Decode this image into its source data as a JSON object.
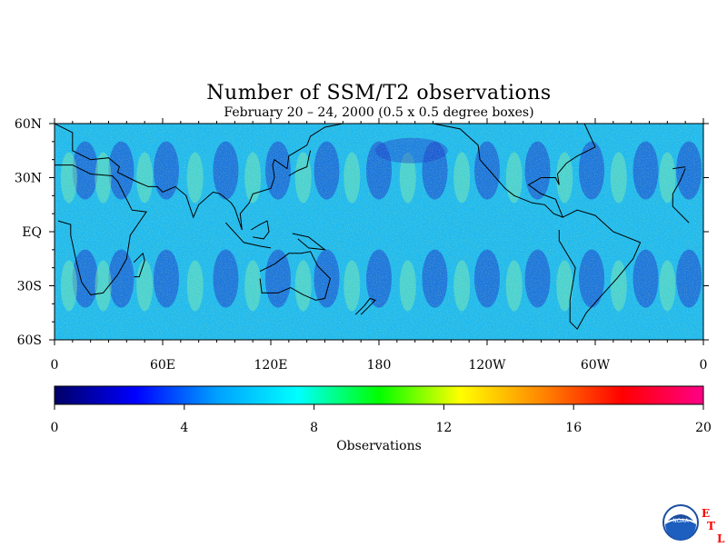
{
  "title": "Number of SSM/T2 observations",
  "subtitle": "February 20 – 24, 2000 (0.5 x 0.5 degree boxes)",
  "map": {
    "lat_labels": [
      "60N",
      "30N",
      "EQ",
      "30S",
      "60S"
    ],
    "lat_values": [
      60,
      30,
      0,
      -30,
      -60
    ],
    "lon_labels": [
      "0",
      "60E",
      "120E",
      "180",
      "120W",
      "60W",
      "0"
    ],
    "lon_values": [
      0,
      60,
      120,
      180,
      240,
      300,
      360
    ],
    "lon_range": [
      0,
      360
    ],
    "lat_range": [
      -60,
      60
    ]
  },
  "colorbar": {
    "label": "Observations",
    "ticks": [
      "0",
      "4",
      "8",
      "12",
      "16",
      "20"
    ],
    "tick_values": [
      0,
      4,
      8,
      12,
      16,
      20
    ],
    "range": [
      0,
      20
    ],
    "colors": [
      "#000066",
      "#0000ff",
      "#00a0ff",
      "#00ffff",
      "#00ff00",
      "#ffff00",
      "#ff8800",
      "#ff0000",
      "#ff0088"
    ]
  },
  "logo": {
    "text": "NOAA",
    "letters": [
      "E",
      "T",
      "L"
    ],
    "letter_color": "#ff0000"
  }
}
